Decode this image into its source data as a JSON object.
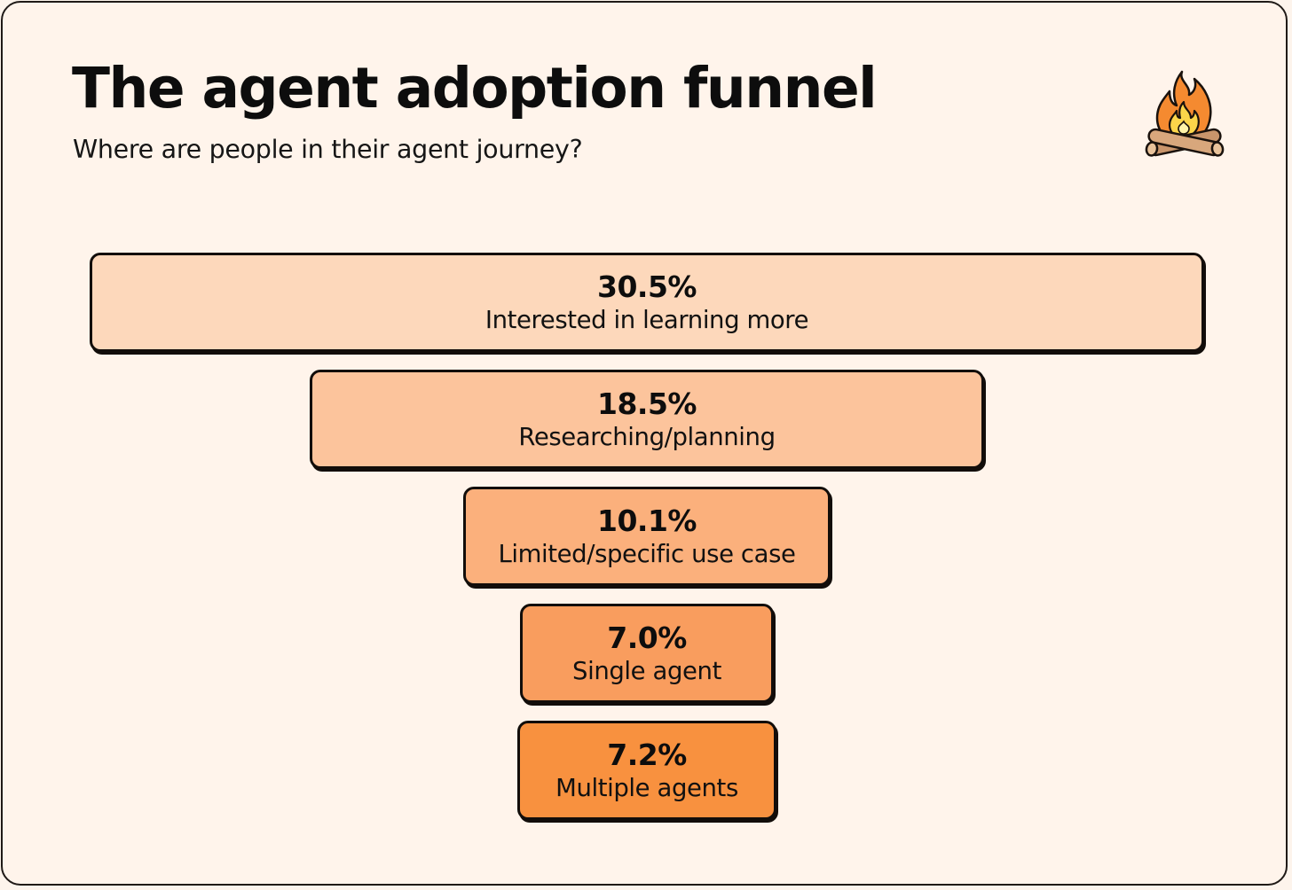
{
  "title": "The agent adoption funnel",
  "subtitle": "Where are people in their agent journey?",
  "logo_icon": "campfire-icon",
  "chart_data": {
    "type": "funnel",
    "title": "The agent adoption funnel",
    "subtitle": "Where are people in their agent journey?",
    "unit": "%",
    "stages": [
      {
        "label": "Interested in learning more",
        "value": 30.5,
        "display": "30.5%",
        "color": "#fdd8bb"
      },
      {
        "label": "Researching/planning",
        "value": 18.5,
        "display": "18.5%",
        "color": "#fcc49c"
      },
      {
        "label": "Limited/specific use case",
        "value": 10.1,
        "display": "10.1%",
        "color": "#fbb07c"
      },
      {
        "label": "Single agent",
        "value": 7.0,
        "display": "7.0%",
        "color": "#f99d5e"
      },
      {
        "label": "Multiple agents",
        "value": 7.2,
        "display": "7.2%",
        "color": "#f8913f"
      }
    ]
  }
}
